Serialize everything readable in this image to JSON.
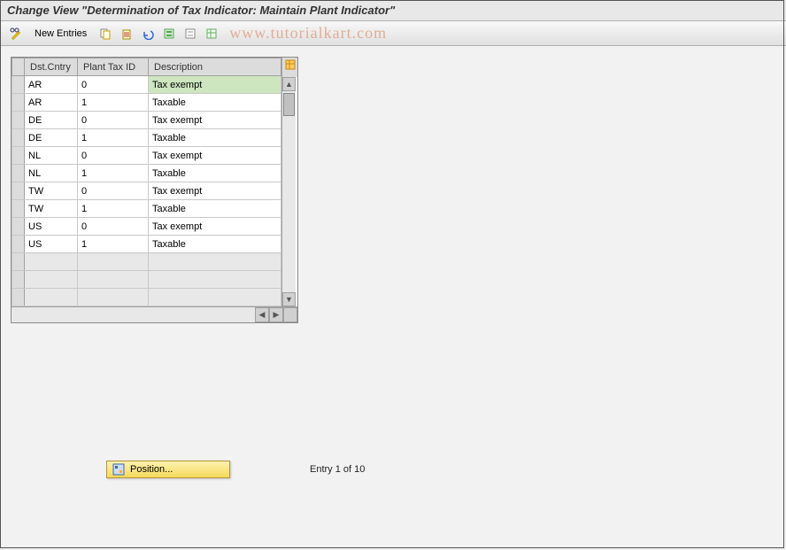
{
  "title": "Change View \"Determination of Tax Indicator: Maintain Plant Indicator\"",
  "toolbar": {
    "new_entries_label": "New Entries"
  },
  "watermark": "www.tutorialkart.com",
  "table": {
    "columns": {
      "dst_cntry": "Dst.Cntry",
      "plant_tax_id": "Plant Tax ID",
      "description": "Description"
    },
    "col_widths": {
      "selector": 14,
      "dst": 60,
      "tax": 80,
      "desc": 150
    },
    "rows": [
      {
        "dst": "AR",
        "tax": "0",
        "desc": "Tax exempt",
        "selected_desc": true
      },
      {
        "dst": "AR",
        "tax": "1",
        "desc": "Taxable"
      },
      {
        "dst": "DE",
        "tax": "0",
        "desc": "Tax exempt"
      },
      {
        "dst": "DE",
        "tax": "1",
        "desc": "Taxable"
      },
      {
        "dst": "NL",
        "tax": "0",
        "desc": "Tax exempt"
      },
      {
        "dst": "NL",
        "tax": "1",
        "desc": "Taxable"
      },
      {
        "dst": "TW",
        "tax": "0",
        "desc": "Tax exempt"
      },
      {
        "dst": "TW",
        "tax": "1",
        "desc": "Taxable"
      },
      {
        "dst": "US",
        "tax": "0",
        "desc": "Tax exempt"
      },
      {
        "dst": "US",
        "tax": "1",
        "desc": "Taxable"
      }
    ],
    "empty_rows": 3
  },
  "footer": {
    "position_label": "Position...",
    "entry_label": "Entry 1 of 10"
  },
  "colors": {
    "header_bg": "#dcdcdc",
    "selected_cell": "#cde6c0",
    "button_gradient_top": "#fff3b0",
    "button_gradient_bottom": "#f5d95a",
    "border": "#a0a0a0"
  }
}
